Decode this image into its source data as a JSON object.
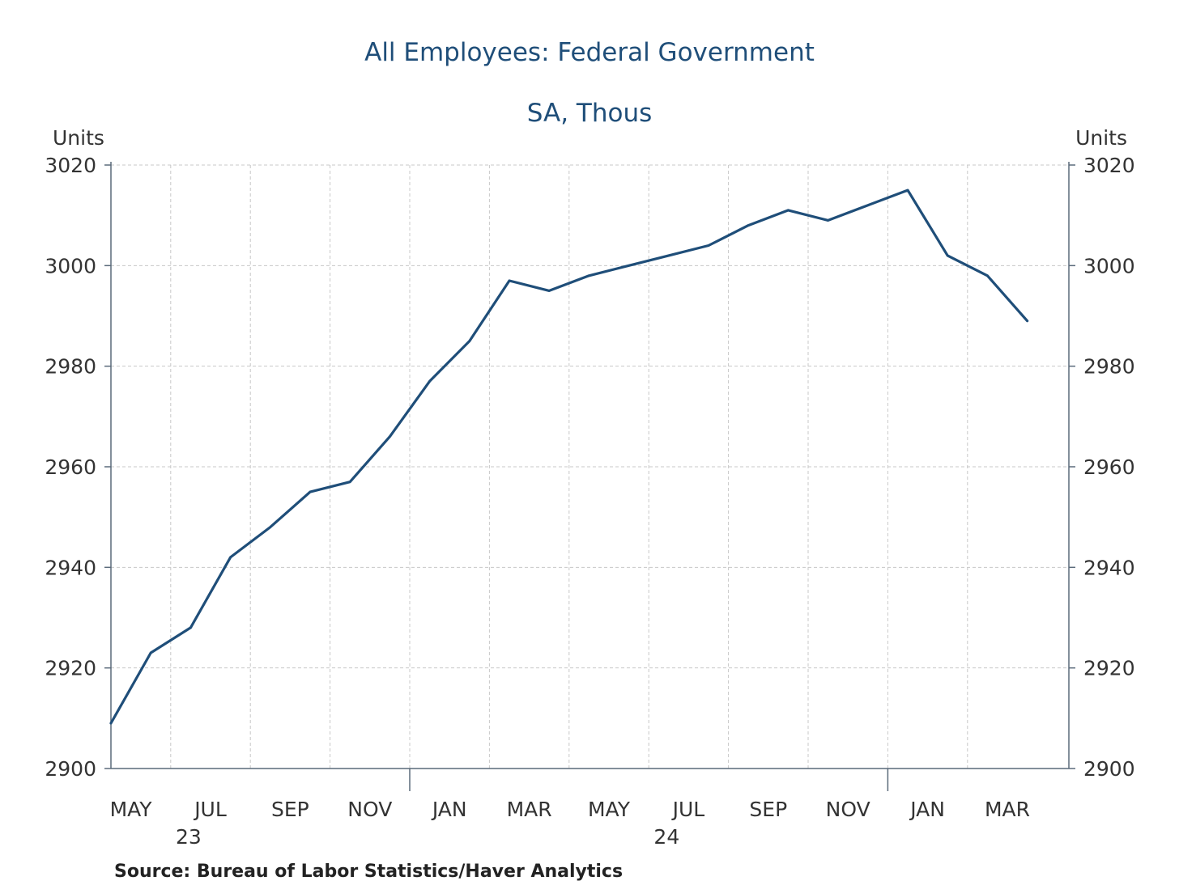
{
  "chart_data": {
    "type": "line",
    "title": "All Employees: Federal Government",
    "subtitle": "SA, Thous",
    "ylabel_left": "Units",
    "ylabel_right": "Units",
    "ylim": [
      2900,
      3020
    ],
    "yticks": [
      "2900",
      "2920",
      "2940",
      "2960",
      "2980",
      "3000",
      "3020"
    ],
    "grid": true,
    "month_labels": [
      "MAY",
      "JUL",
      "SEP",
      "NOV",
      "JAN",
      "MAR",
      "MAY",
      "JUL",
      "SEP",
      "NOV",
      "JAN",
      "MAR"
    ],
    "year_labels": [
      "23",
      "24"
    ],
    "x": [
      "2023-05",
      "2023-06",
      "2023-07",
      "2023-08",
      "2023-09",
      "2023-10",
      "2023-11",
      "2023-12",
      "2024-01",
      "2024-02",
      "2024-03",
      "2024-04",
      "2024-05",
      "2024-06",
      "2024-07",
      "2024-08",
      "2024-09",
      "2024-10",
      "2024-11",
      "2024-12",
      "2025-01",
      "2025-02",
      "2025-03",
      "2025-04"
    ],
    "series": [
      {
        "values": [
          2909,
          2923,
          2928,
          2942,
          2948,
          2955,
          2957,
          2966,
          2977,
          2985,
          2997,
          2995,
          2998,
          3000,
          3002,
          3004,
          3008,
          3011,
          3009,
          3012,
          3015,
          3002,
          2998,
          2989
        ],
        "color": "#1f4e79"
      }
    ],
    "source": "Source:  Bureau of Labor Statistics/Haver Analytics"
  }
}
